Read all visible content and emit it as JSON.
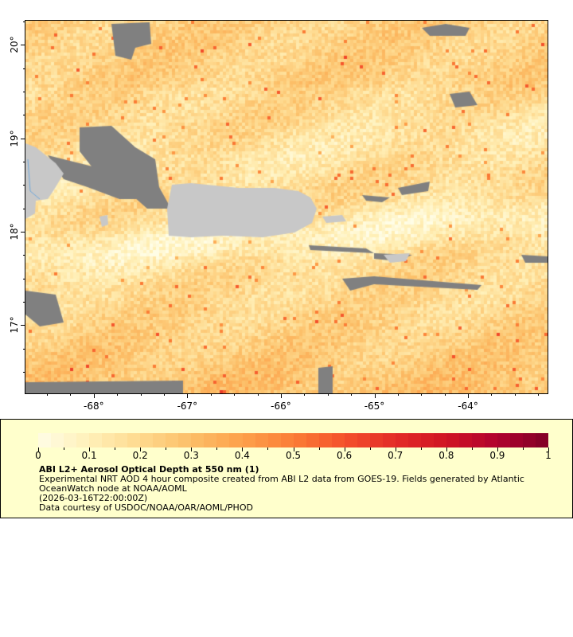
{
  "map": {
    "lon_range": [
      -68.73,
      -63.15
    ],
    "lat_range": [
      16.27,
      20.26
    ],
    "x_ticks": [
      {
        "value": -68,
        "label": "-68°"
      },
      {
        "value": -67,
        "label": "-67°"
      },
      {
        "value": -66,
        "label": "-66°"
      },
      {
        "value": -65,
        "label": "-65°"
      },
      {
        "value": -64,
        "label": "-64°"
      }
    ],
    "y_ticks": [
      {
        "value": 20,
        "label": "20°"
      },
      {
        "value": 19,
        "label": "19°"
      },
      {
        "value": 18,
        "label": "18°"
      },
      {
        "value": 17,
        "label": "17°"
      }
    ],
    "land_color": "#c8c8c8",
    "nodata_color": "#808080",
    "river_color": "#6fa8dc"
  },
  "legend": {
    "colorbar_range": [
      0,
      1
    ],
    "colorbar_ticks": [
      "0",
      "0.1",
      "0.2",
      "0.3",
      "0.4",
      "0.5",
      "0.6",
      "0.7",
      "0.8",
      "0.9",
      "1"
    ],
    "colormap": [
      "#fffde6",
      "#fff0b8",
      "#fed98e",
      "#fcbf68",
      "#fda04a",
      "#fb7d36",
      "#f4502b",
      "#e32b27",
      "#d01424",
      "#b0022e",
      "#800026"
    ],
    "title": "ABI L2+ Aerosol Optical Depth at 550 nm (1)",
    "description": "Experimental NRT AOD 4 hour composite created from ABI L2 data from GOES-19. Fields generated by Atlantic OceanWatch node at NOAA/AOML",
    "time": "(2026-03-16T22:00:00Z)",
    "credit": "Data courtesy of USDOC/NOAA/OAR/AOML/PHOD",
    "background": "#ffffcc"
  }
}
